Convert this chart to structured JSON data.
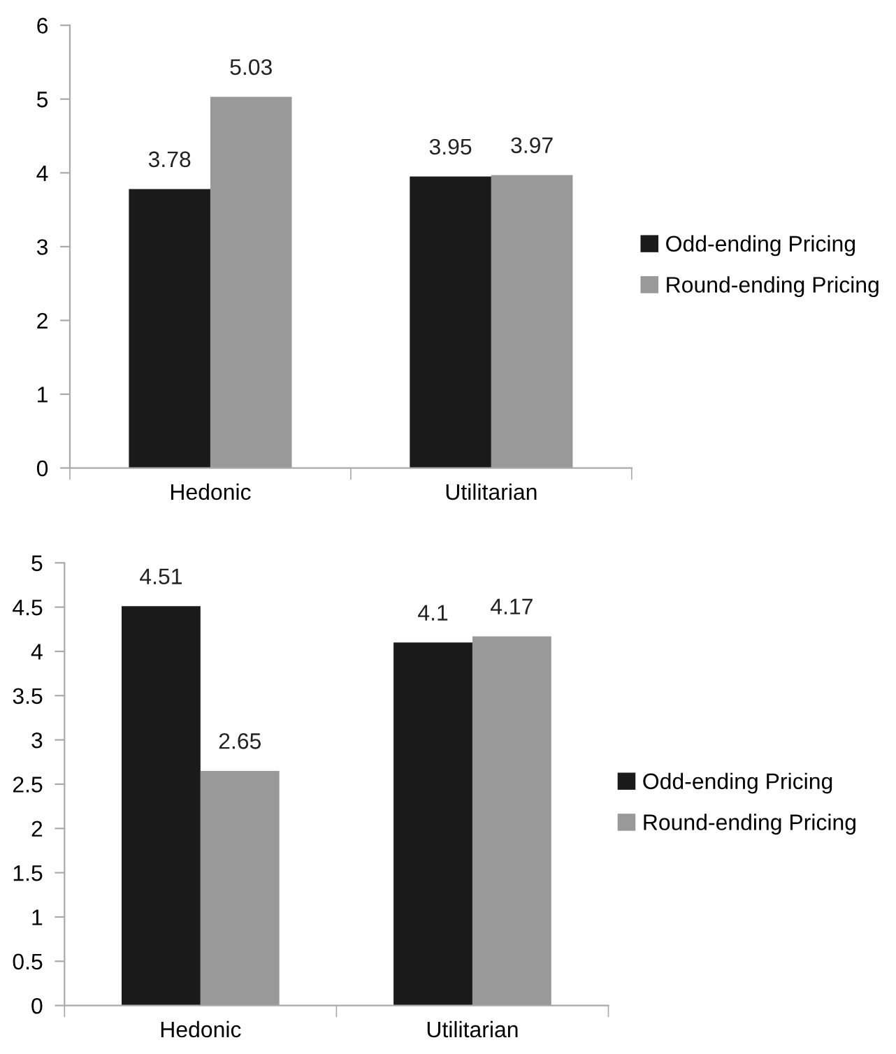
{
  "chart_data": [
    {
      "type": "bar",
      "categories": [
        "Hedonic",
        "Utilitarian"
      ],
      "series": [
        {
          "name": "Odd-ending Pricing",
          "color": "#1a1a1a",
          "values": [
            3.78,
            3.95
          ]
        },
        {
          "name": "Round-ending Pricing",
          "color": "#999999",
          "values": [
            5.03,
            3.97
          ]
        }
      ],
      "ylim": [
        0,
        6
      ],
      "yticks": [
        0,
        1,
        2,
        3,
        4,
        5,
        6
      ],
      "data_labels": true,
      "legend": "right",
      "grid": false
    },
    {
      "type": "bar",
      "categories": [
        "Hedonic",
        "Utilitarian"
      ],
      "series": [
        {
          "name": "Odd-ending Pricing",
          "color": "#1a1a1a",
          "values": [
            4.51,
            4.1
          ]
        },
        {
          "name": "Round-ending Pricing",
          "color": "#999999",
          "values": [
            2.65,
            4.17
          ]
        }
      ],
      "ylim": [
        0,
        5
      ],
      "yticks": [
        0,
        0.5,
        1,
        1.5,
        2,
        2.5,
        3,
        3.5,
        4,
        4.5,
        5
      ],
      "data_labels": true,
      "legend": "right",
      "grid": false
    }
  ]
}
